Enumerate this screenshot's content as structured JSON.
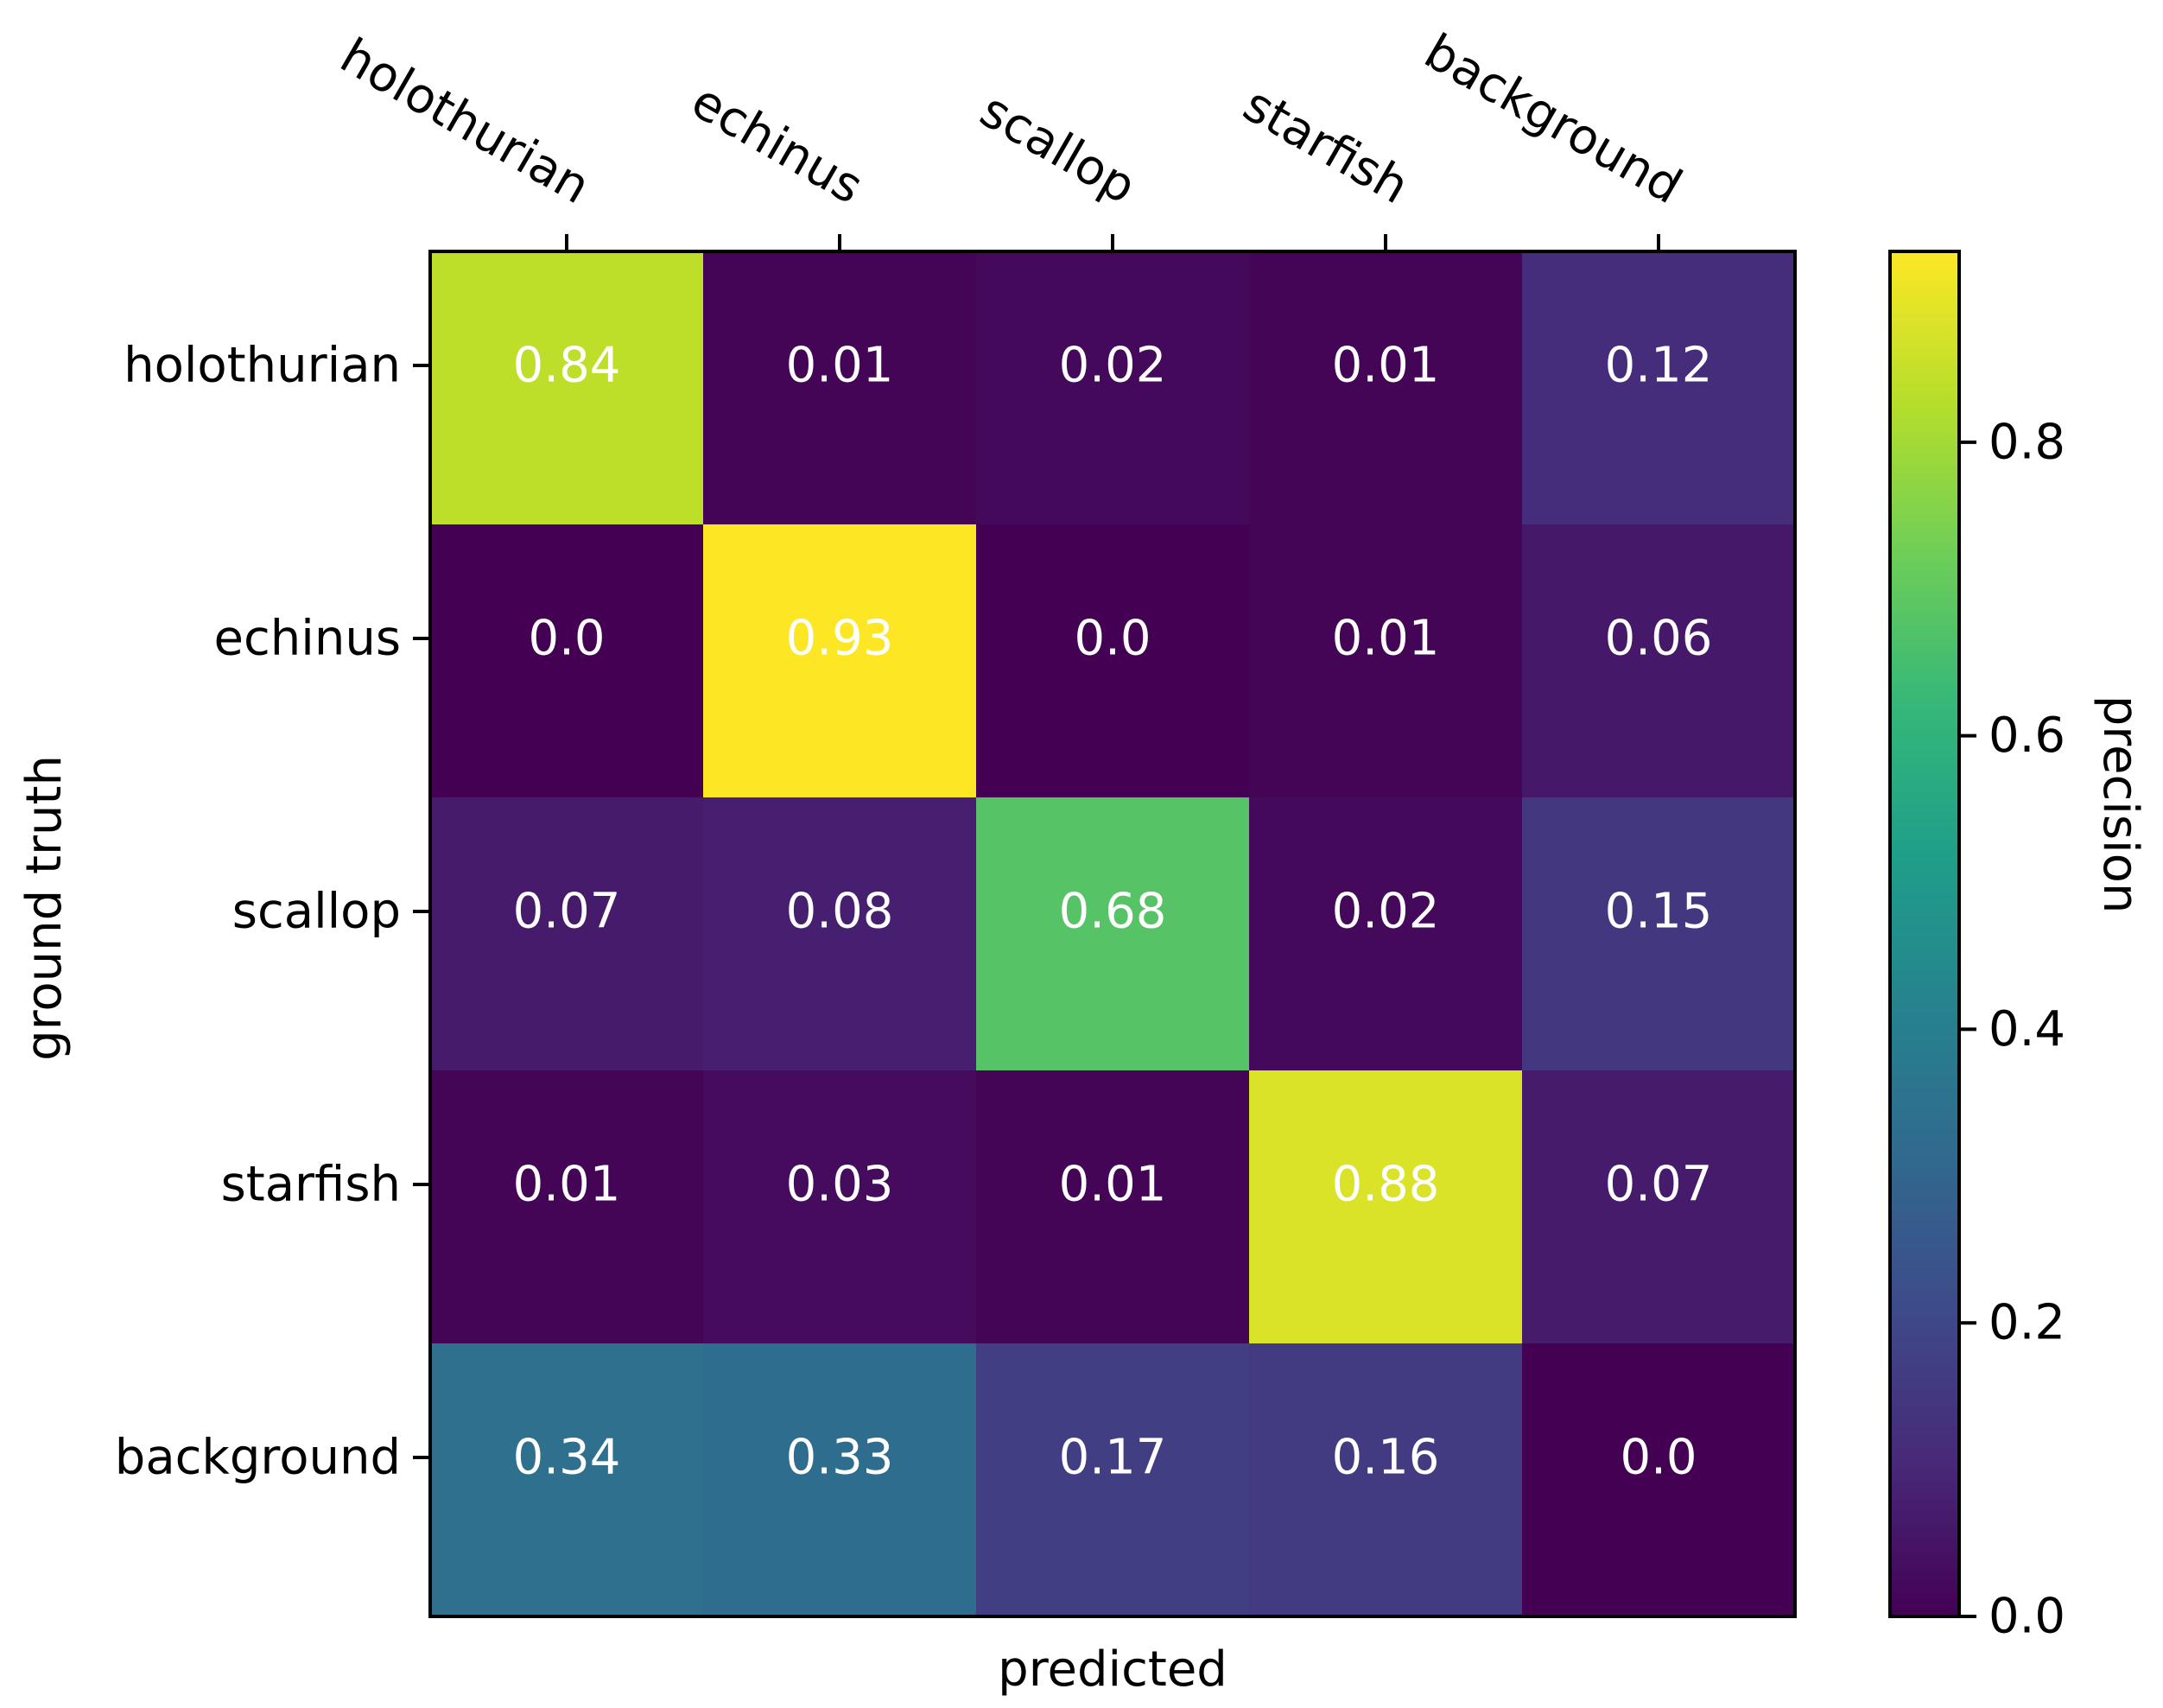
{
  "chart_data": {
    "type": "heatmap",
    "title": "",
    "xlabel": "predicted",
    "ylabel": "ground truth",
    "x_categories": [
      "holothurian",
      "echinus",
      "scallop",
      "starfish",
      "background"
    ],
    "y_categories": [
      "holothurian",
      "echinus",
      "scallop",
      "starfish",
      "background"
    ],
    "values": [
      [
        0.84,
        0.01,
        0.02,
        0.01,
        0.12
      ],
      [
        0.0,
        0.93,
        0.0,
        0.01,
        0.06
      ],
      [
        0.07,
        0.08,
        0.68,
        0.02,
        0.15
      ],
      [
        0.01,
        0.03,
        0.01,
        0.88,
        0.07
      ],
      [
        0.34,
        0.33,
        0.17,
        0.16,
        0.0
      ]
    ],
    "value_labels": [
      [
        "0.84",
        "0.01",
        "0.02",
        "0.01",
        "0.12"
      ],
      [
        "0.0",
        "0.93",
        "0.0",
        "0.01",
        "0.06"
      ],
      [
        "0.07",
        "0.08",
        "0.68",
        "0.02",
        "0.15"
      ],
      [
        "0.01",
        "0.03",
        "0.01",
        "0.88",
        "0.07"
      ],
      [
        "0.34",
        "0.33",
        "0.17",
        "0.16",
        "0.0"
      ]
    ],
    "colormap": "viridis",
    "colorbar": {
      "label": "precision",
      "range": [
        0.0,
        0.93
      ],
      "ticks": [
        0.0,
        0.2,
        0.4,
        0.6,
        0.8
      ],
      "tick_labels": [
        "0.0",
        "0.2",
        "0.4",
        "0.6",
        "0.8"
      ]
    }
  }
}
